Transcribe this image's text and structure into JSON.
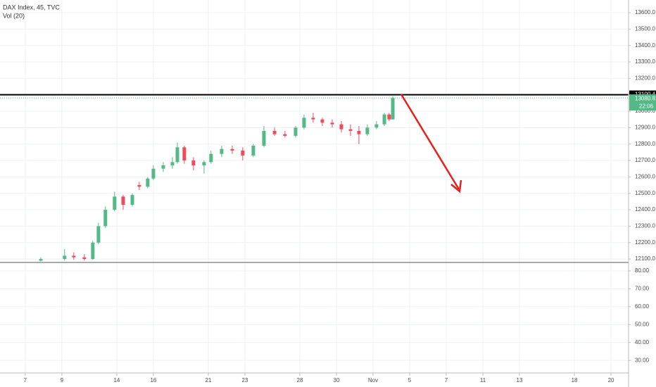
{
  "chart_data": [
    {
      "type": "candlestick",
      "title": "DAX Index, 45, TVC",
      "x": [
        0.85,
        2.15,
        2.65,
        3.23,
        3.69,
        4.0,
        4.38,
        4.88,
        5.35,
        5.85,
        6.23,
        6.69,
        7.0,
        7.54,
        8.04,
        8.31,
        8.69,
        9.19,
        9.77,
        10.15,
        10.73,
        11.31,
        11.88,
        12.46,
        13.04,
        13.62,
        14.19,
        14.77,
        15.23,
        15.73,
        16.23,
        16.77,
        17.27,
        17.77,
        18.23,
        18.69,
        19.19,
        19.62,
        19.88,
        20.08
      ],
      "open": [
        12090,
        12100,
        12120,
        12110,
        12100,
        12200,
        12300,
        12400,
        12480,
        12430,
        12550,
        12540,
        12590,
        12650,
        12670,
        12690,
        12780,
        12700,
        12670,
        12690,
        12740,
        12770,
        12760,
        12730,
        12790,
        12880,
        12860,
        12850,
        12900,
        12960,
        12950,
        12930,
        12920,
        12890,
        12880,
        12860,
        12900,
        12920,
        12980,
        12950
      ],
      "high": [
        12110,
        12160,
        12140,
        12130,
        12210,
        12320,
        12420,
        12510,
        12490,
        12500,
        12570,
        12600,
        12670,
        12690,
        12720,
        12810,
        12790,
        12720,
        12700,
        12760,
        12790,
        12790,
        12780,
        12800,
        12910,
        12900,
        12880,
        12910,
        12980,
        12990,
        12960,
        12950,
        12940,
        12920,
        12910,
        12920,
        12940,
        12990,
        12990,
        13090
      ],
      "low": [
        12085,
        12090,
        12095,
        12090,
        12095,
        12190,
        12290,
        12390,
        12400,
        12420,
        12520,
        12530,
        12580,
        12630,
        12650,
        12680,
        12680,
        12640,
        12620,
        12680,
        12720,
        12740,
        12700,
        12720,
        12780,
        12850,
        12840,
        12840,
        12890,
        12930,
        12910,
        12900,
        12870,
        12850,
        12800,
        12850,
        12890,
        12910,
        12940,
        12950
      ],
      "close": [
        12100,
        12120,
        12110,
        12100,
        12200,
        12300,
        12400,
        12480,
        12430,
        12490,
        12540,
        12590,
        12650,
        12670,
        12690,
        12780,
        12700,
        12670,
        12690,
        12740,
        12770,
        12760,
        12730,
        12790,
        12880,
        12860,
        12850,
        12900,
        12960,
        12950,
        12930,
        12920,
        12890,
        12880,
        12860,
        12900,
        12920,
        12980,
        12950,
        13080
      ],
      "up_color": "#53b987",
      "down_color": "#eb4d5c",
      "xlim": [
        -1.38,
        32.96
      ],
      "xticks": [
        {
          "value": 0,
          "label": "7"
        },
        {
          "value": 2,
          "label": "9"
        },
        {
          "value": 5,
          "label": "14"
        },
        {
          "value": 7,
          "label": "16"
        },
        {
          "value": 10,
          "label": "21"
        },
        {
          "value": 12,
          "label": "23"
        },
        {
          "value": 15,
          "label": "28"
        },
        {
          "value": 17,
          "label": "30"
        },
        {
          "value": 19,
          "label": "Nov"
        },
        {
          "value": 21,
          "label": "5"
        },
        {
          "value": 23,
          "label": "7"
        },
        {
          "value": 25,
          "label": "11"
        },
        {
          "value": 27,
          "label": "13"
        },
        {
          "value": 30,
          "label": "18"
        },
        {
          "value": 32,
          "label": "20"
        }
      ],
      "ylim": [
        12079,
        13677
      ],
      "yticks": [
        {
          "value": 12100,
          "label": "12100.0"
        },
        {
          "value": 12200,
          "label": "12200.0"
        },
        {
          "value": 12300,
          "label": "12300.0"
        },
        {
          "value": 12400,
          "label": "12400.0"
        },
        {
          "value": 12500,
          "label": "12500.0"
        },
        {
          "value": 12600,
          "label": "12600.0"
        },
        {
          "value": 12700,
          "label": "12700.0"
        },
        {
          "value": 12800,
          "label": "12800.0"
        },
        {
          "value": 12900,
          "label": "12900.0"
        },
        {
          "value": 13000,
          "label": "13000.0"
        },
        {
          "value": 13100,
          "label": "13100.0"
        },
        {
          "value": 13200,
          "label": "13200.0"
        },
        {
          "value": 13300,
          "label": "13300.0"
        },
        {
          "value": 13400,
          "label": "13400.0"
        },
        {
          "value": 13500,
          "label": "13500.0"
        },
        {
          "value": 13600,
          "label": "13600.0"
        }
      ],
      "level_line": 13100.4,
      "last_price": 13080.8,
      "countdown": "22:06",
      "grid": true
    },
    {
      "type": "volume",
      "title": "Vol (20)",
      "ylim": [
        23,
        84.7
      ],
      "yticks": [
        {
          "value": 30,
          "label": "30.00"
        },
        {
          "value": 40,
          "label": "40.00"
        },
        {
          "value": 50,
          "label": "50.00"
        },
        {
          "value": 60,
          "label": "60.00"
        },
        {
          "value": 70,
          "label": "70.00"
        },
        {
          "value": 80,
          "label": "80.00"
        }
      ],
      "grid": true
    }
  ]
}
